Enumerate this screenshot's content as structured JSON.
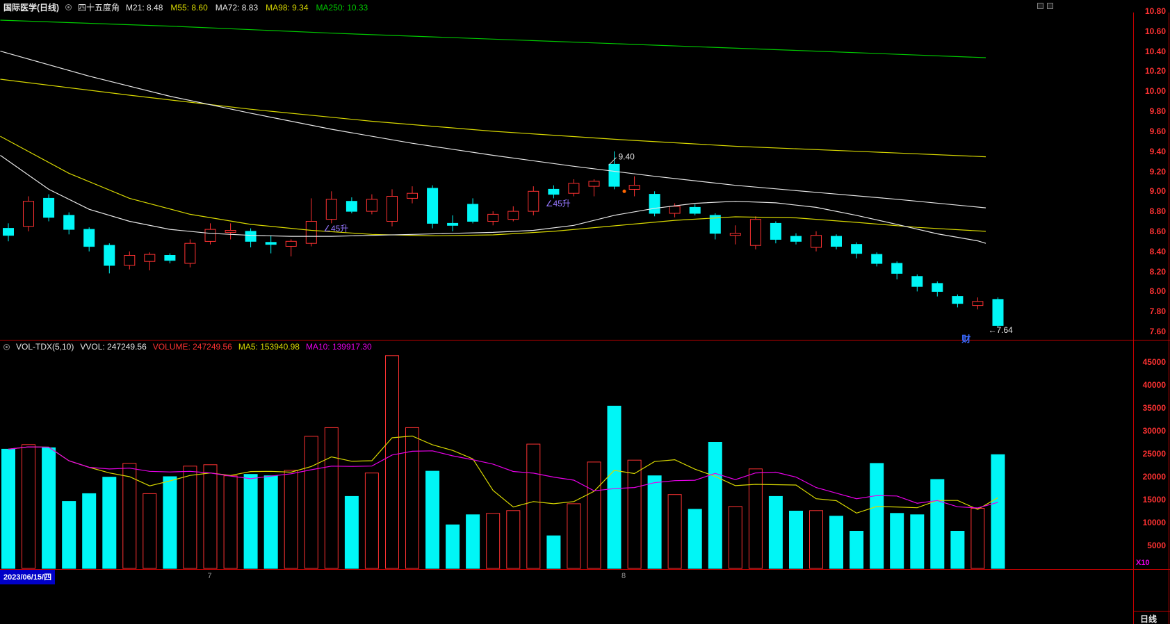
{
  "header": {
    "title": "国际医学(日线)",
    "indicator_name": "四十五度角",
    "ma_labels": [
      {
        "text": "M21: 8.48",
        "color": "#e8e8e8"
      },
      {
        "text": "M55: 8.60",
        "color": "#d8d800"
      },
      {
        "text": "MA72: 8.83",
        "color": "#e8e8e8"
      },
      {
        "text": "MA98: 9.34",
        "color": "#d8d800"
      },
      {
        "text": "MA250: 10.33",
        "color": "#00c800"
      }
    ]
  },
  "volume_header": {
    "name": "VOL-TDX(5,10)",
    "vvol": "VVOL: 247249.56",
    "volume_label": "VOLUME: 247249.56",
    "ma5_label": "MA5: 153940.98",
    "ma10_label": "MA10: 139917.30"
  },
  "axis": {
    "volume_unit": "X10",
    "period_label": "日线"
  },
  "xaxis": {
    "date_label": "2023/06/15/四",
    "month_markers": [
      {
        "label": "7",
        "index": 10
      },
      {
        "label": "8",
        "index": 30.5
      }
    ]
  },
  "palette": {
    "red": "#ff3232",
    "cyan": "#00f6f6",
    "yellow": "#d8d800",
    "green": "#00c800",
    "white": "#e8e8e8",
    "magenta": "#e800e8",
    "purple": "#9678ff",
    "orange": "#ff6600",
    "frame": "#c00000",
    "date_bg": "#0000c8",
    "finance_blue": "#3a6aff"
  },
  "chart_data": [
    {
      "type": "candlestick",
      "title": "国际医学(日线) 四十五度角",
      "ylim": [
        7.6,
        10.8
      ],
      "y_ticks": [
        "10.80",
        "10.60",
        "10.40",
        "10.20",
        "10.00",
        "9.80",
        "9.60",
        "9.40",
        "9.20",
        "9.00",
        "8.80",
        "8.60",
        "8.40",
        "8.20",
        "8.00",
        "7.80",
        "7.60"
      ],
      "ohlc": [
        [
          8.63,
          8.68,
          8.5,
          8.56
        ],
        [
          8.65,
          8.95,
          8.6,
          8.9
        ],
        [
          8.93,
          8.97,
          8.7,
          8.74
        ],
        [
          8.76,
          8.79,
          8.57,
          8.62
        ],
        [
          8.62,
          8.64,
          8.4,
          8.45
        ],
        [
          8.46,
          8.48,
          8.18,
          8.26
        ],
        [
          8.26,
          8.4,
          8.22,
          8.36
        ],
        [
          8.3,
          8.39,
          8.21,
          8.37
        ],
        [
          8.36,
          8.38,
          8.28,
          8.31
        ],
        [
          8.28,
          8.52,
          8.24,
          8.48
        ],
        [
          8.5,
          8.68,
          8.47,
          8.62
        ],
        [
          8.59,
          8.68,
          8.52,
          8.61
        ],
        [
          8.6,
          8.63,
          8.44,
          8.5
        ],
        [
          8.49,
          8.56,
          8.38,
          8.47
        ],
        [
          8.45,
          8.52,
          8.35,
          8.5
        ],
        [
          8.48,
          8.93,
          8.45,
          8.7
        ],
        [
          8.72,
          9.0,
          8.68,
          8.92
        ],
        [
          8.9,
          8.94,
          8.78,
          8.8
        ],
        [
          8.8,
          8.97,
          8.77,
          8.92
        ],
        [
          8.7,
          9.02,
          8.65,
          8.95
        ],
        [
          8.93,
          9.05,
          8.88,
          8.98
        ],
        [
          9.03,
          9.06,
          8.63,
          8.68
        ],
        [
          8.68,
          8.76,
          8.6,
          8.66
        ],
        [
          8.87,
          8.93,
          8.68,
          8.7
        ],
        [
          8.7,
          8.8,
          8.66,
          8.77
        ],
        [
          8.72,
          8.85,
          8.7,
          8.8
        ],
        [
          8.8,
          9.05,
          8.76,
          9.0
        ],
        [
          9.02,
          9.06,
          8.93,
          8.97
        ],
        [
          8.98,
          9.12,
          8.95,
          9.08
        ],
        [
          9.05,
          9.12,
          8.95,
          9.1
        ],
        [
          9.27,
          9.4,
          9.02,
          9.05
        ],
        [
          9.02,
          9.15,
          8.95,
          9.06
        ],
        [
          8.97,
          9.0,
          8.75,
          8.78
        ],
        [
          8.78,
          8.88,
          8.74,
          8.85
        ],
        [
          8.84,
          8.87,
          8.76,
          8.78
        ],
        [
          8.76,
          8.78,
          8.52,
          8.58
        ],
        [
          8.56,
          8.66,
          8.47,
          8.58
        ],
        [
          8.46,
          8.75,
          8.42,
          8.72
        ],
        [
          8.68,
          8.7,
          8.48,
          8.52
        ],
        [
          8.55,
          8.58,
          8.47,
          8.5
        ],
        [
          8.44,
          8.6,
          8.4,
          8.56
        ],
        [
          8.55,
          8.57,
          8.42,
          8.45
        ],
        [
          8.47,
          8.49,
          8.33,
          8.38
        ],
        [
          8.37,
          8.39,
          8.25,
          8.28
        ],
        [
          8.28,
          8.3,
          8.12,
          8.18
        ],
        [
          8.15,
          8.17,
          8.0,
          8.05
        ],
        [
          8.08,
          8.1,
          7.95,
          8.0
        ],
        [
          7.95,
          7.97,
          7.84,
          7.88
        ],
        [
          7.86,
          7.94,
          7.82,
          7.9
        ],
        [
          7.92,
          7.94,
          7.64,
          7.66
        ]
      ],
      "overlays": [
        {
          "name": "MA250",
          "color": "#00c800",
          "points": [
            [
              -0.4,
              10.71
            ],
            [
              8,
              10.65
            ],
            [
              16,
              10.58
            ],
            [
              24,
              10.52
            ],
            [
              32,
              10.46
            ],
            [
              40,
              10.4
            ],
            [
              48.4,
              10.335
            ]
          ]
        },
        {
          "name": "MA98",
          "color": "#d8d800",
          "points": [
            [
              -0.4,
              10.12
            ],
            [
              6,
              9.96
            ],
            [
              12,
              9.82
            ],
            [
              18,
              9.7
            ],
            [
              24,
              9.6
            ],
            [
              30,
              9.52
            ],
            [
              36,
              9.45
            ],
            [
              42,
              9.4
            ],
            [
              48.4,
              9.345
            ]
          ]
        },
        {
          "name": "MA72",
          "color": "#e8e8e8",
          "points": [
            [
              -0.4,
              10.4
            ],
            [
              4,
              10.15
            ],
            [
              8,
              9.95
            ],
            [
              12,
              9.78
            ],
            [
              16,
              9.62
            ],
            [
              20,
              9.48
            ],
            [
              24,
              9.36
            ],
            [
              28,
              9.25
            ],
            [
              32,
              9.15
            ],
            [
              36,
              9.06
            ],
            [
              40,
              8.99
            ],
            [
              44,
              8.92
            ],
            [
              48.4,
              8.835
            ]
          ]
        },
        {
          "name": "M55",
          "color": "#d8d800",
          "points": [
            [
              -0.4,
              9.55
            ],
            [
              3,
              9.18
            ],
            [
              6,
              8.93
            ],
            [
              9,
              8.77
            ],
            [
              12,
              8.67
            ],
            [
              15,
              8.61
            ],
            [
              18,
              8.57
            ],
            [
              21,
              8.555
            ],
            [
              24,
              8.565
            ],
            [
              27,
              8.6
            ],
            [
              30,
              8.655
            ],
            [
              33,
              8.71
            ],
            [
              36,
              8.745
            ],
            [
              39,
              8.735
            ],
            [
              42,
              8.69
            ],
            [
              45,
              8.64
            ],
            [
              48.4,
              8.6
            ]
          ]
        },
        {
          "name": "M21",
          "color": "#e8e8e8",
          "points": [
            [
              -0.4,
              9.36
            ],
            [
              2,
              9.02
            ],
            [
              4,
              8.82
            ],
            [
              6,
              8.7
            ],
            [
              8,
              8.62
            ],
            [
              10,
              8.58
            ],
            [
              12,
              8.56
            ],
            [
              14,
              8.55
            ],
            [
              16,
              8.55
            ],
            [
              18,
              8.56
            ],
            [
              20,
              8.57
            ],
            [
              22,
              8.58
            ],
            [
              24,
              8.59
            ],
            [
              26,
              8.61
            ],
            [
              28,
              8.66
            ],
            [
              30,
              8.76
            ],
            [
              32,
              8.83
            ],
            [
              34,
              8.88
            ],
            [
              36,
              8.9
            ],
            [
              38,
              8.885
            ],
            [
              40,
              8.84
            ],
            [
              42,
              8.76
            ],
            [
              44,
              8.67
            ],
            [
              46,
              8.575
            ],
            [
              48,
              8.505
            ],
            [
              48.4,
              8.48
            ]
          ]
        }
      ],
      "annotations": [
        {
          "id": "peak",
          "text": "9.40",
          "index": 30,
          "price": 9.4,
          "color": "#e8e8e8"
        },
        {
          "id": "signal-dot",
          "text": "",
          "index": 30.5,
          "price": 9.0,
          "color": "#ff6600"
        },
        {
          "id": "angle1",
          "text": "∠45升",
          "index": 15.6,
          "price": 8.6,
          "color": "#9678ff"
        },
        {
          "id": "angle2",
          "text": "∠45升",
          "index": 26.6,
          "price": 8.85,
          "color": "#9678ff"
        },
        {
          "id": "low",
          "text": "←7.64",
          "index": 49,
          "price": 7.64,
          "color": "#e8e8e8"
        },
        {
          "id": "finance",
          "text": "财",
          "index": 47.2,
          "price": 7.52,
          "color": "#3a6aff"
        }
      ]
    },
    {
      "type": "bar",
      "title": "VOL-TDX(5,10)",
      "ylim": [
        0,
        48000
      ],
      "y_ticks": [
        "45000",
        "40000",
        "35000",
        "30000",
        "25000",
        "20000",
        "15000",
        "10000",
        "5000"
      ],
      "unit": "X10",
      "values": [
        26000,
        27000,
        26300,
        14600,
        16300,
        19900,
        22900,
        16300,
        20000,
        22300,
        22600,
        20200,
        20500,
        20200,
        21400,
        28800,
        30700,
        15700,
        20800,
        46400,
        30700,
        21200,
        9500,
        11700,
        12000,
        12600,
        27100,
        7100,
        14100,
        23200,
        35400,
        23600,
        20200,
        16100,
        12900,
        27500,
        13500,
        21700,
        15700,
        12500,
        12600,
        11400,
        8100,
        22900,
        12000,
        11700,
        19400,
        8100,
        13100,
        24800
      ],
      "ma": [
        {
          "window": 5,
          "color": "#d8d800"
        },
        {
          "window": 10,
          "color": "#e800e8"
        }
      ]
    }
  ]
}
